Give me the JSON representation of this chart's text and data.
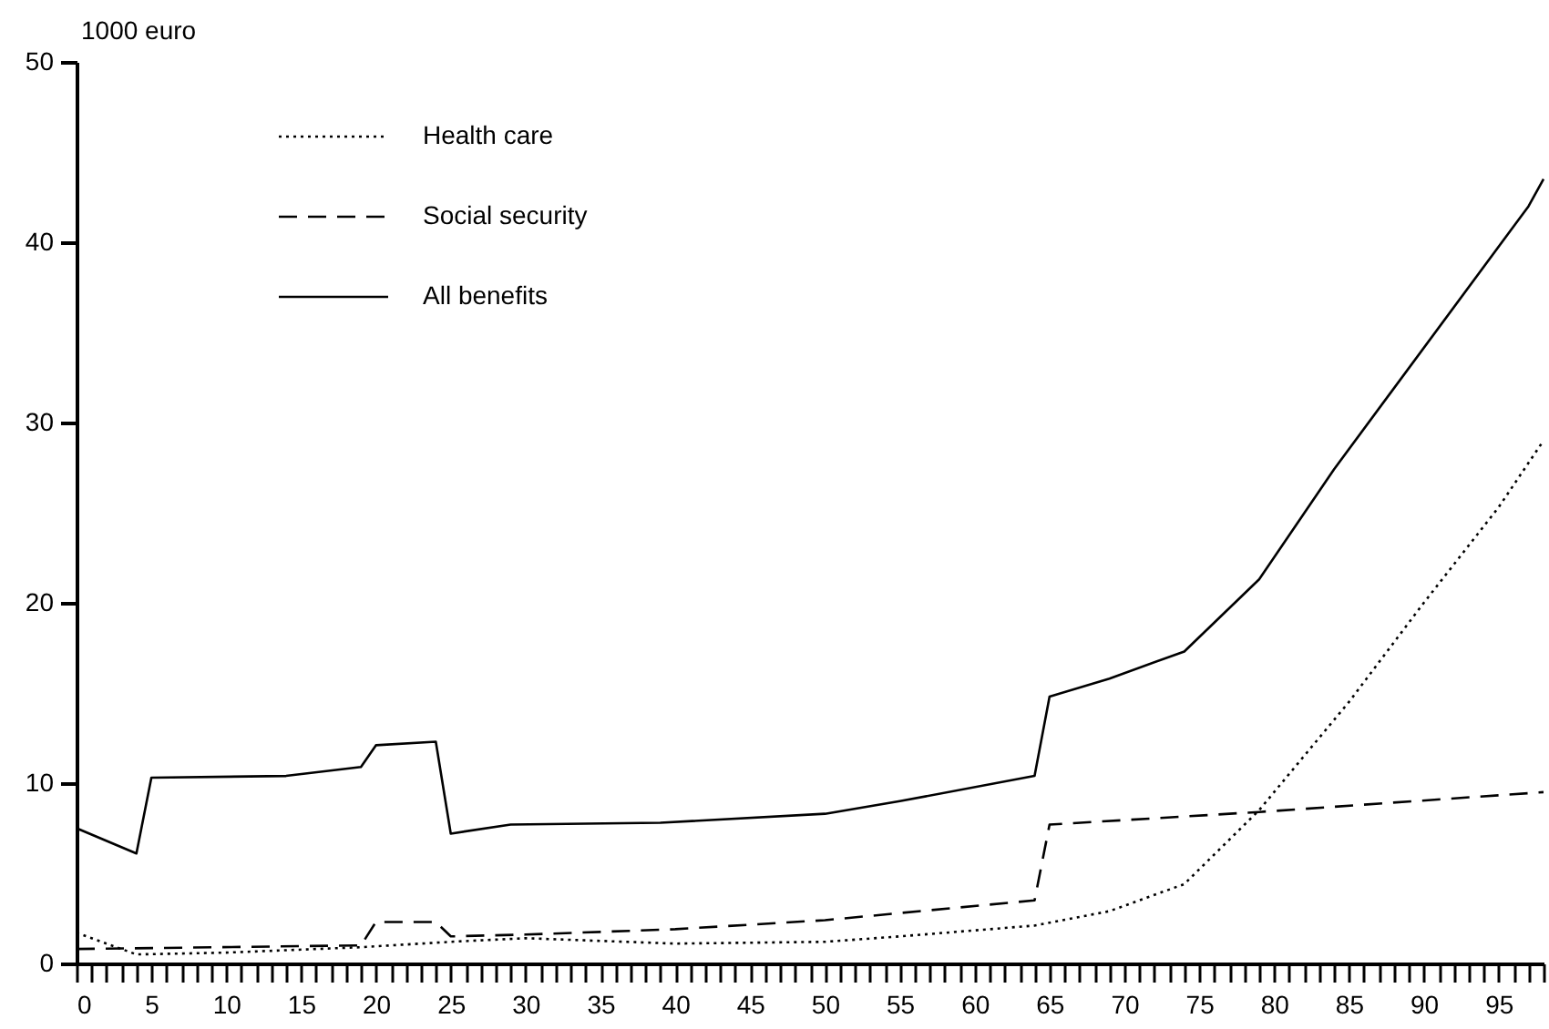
{
  "chart_data": {
    "type": "line",
    "ylabel": "1000 euro",
    "xlim": [
      0,
      98
    ],
    "ylim": [
      0,
      50
    ],
    "yticks": [
      0,
      10,
      20,
      30,
      40,
      50
    ],
    "xticks": [
      0,
      {
        "value": 1,
        "label": null
      },
      {
        "value": 2,
        "label": null
      },
      {
        "value": 3,
        "label": null
      },
      {
        "value": 4,
        "label": null
      },
      5,
      {
        "value": 6,
        "label": null
      },
      {
        "value": 7,
        "label": null
      },
      {
        "value": 8,
        "label": null
      },
      {
        "value": 9,
        "label": null
      },
      10,
      {
        "value": 11,
        "label": null
      },
      {
        "value": 12,
        "label": null
      },
      {
        "value": 13,
        "label": null
      },
      {
        "value": 14,
        "label": null
      },
      15,
      {
        "value": 16,
        "label": null
      },
      {
        "value": 17,
        "label": null
      },
      {
        "value": 18,
        "label": null
      },
      {
        "value": 19,
        "label": null
      },
      20,
      {
        "value": 21,
        "label": null
      },
      {
        "value": 22,
        "label": null
      },
      {
        "value": 23,
        "label": null
      },
      {
        "value": 24,
        "label": null
      },
      25,
      {
        "value": 26,
        "label": null
      },
      {
        "value": 27,
        "label": null
      },
      {
        "value": 28,
        "label": null
      },
      {
        "value": 29,
        "label": null
      },
      30,
      {
        "value": 31,
        "label": null
      },
      {
        "value": 32,
        "label": null
      },
      {
        "value": 33,
        "label": null
      },
      {
        "value": 34,
        "label": null
      },
      35,
      {
        "value": 36,
        "label": null
      },
      {
        "value": 37,
        "label": null
      },
      {
        "value": 38,
        "label": null
      },
      {
        "value": 39,
        "label": null
      },
      40,
      {
        "value": 41,
        "label": null
      },
      {
        "value": 42,
        "label": null
      },
      {
        "value": 43,
        "label": null
      },
      {
        "value": 44,
        "label": null
      },
      45,
      {
        "value": 46,
        "label": null
      },
      {
        "value": 47,
        "label": null
      },
      {
        "value": 48,
        "label": null
      },
      {
        "value": 49,
        "label": null
      },
      50,
      {
        "value": 51,
        "label": null
      },
      {
        "value": 52,
        "label": null
      },
      {
        "value": 53,
        "label": null
      },
      {
        "value": 54,
        "label": null
      },
      55,
      {
        "value": 56,
        "label": null
      },
      {
        "value": 57,
        "label": null
      },
      {
        "value": 58,
        "label": null
      },
      {
        "value": 59,
        "label": null
      },
      60,
      {
        "value": 61,
        "label": null
      },
      {
        "value": 62,
        "label": null
      },
      {
        "value": 63,
        "label": null
      },
      {
        "value": 64,
        "label": null
      },
      65,
      {
        "value": 66,
        "label": null
      },
      {
        "value": 67,
        "label": null
      },
      {
        "value": 68,
        "label": null
      },
      {
        "value": 69,
        "label": null
      },
      70,
      {
        "value": 71,
        "label": null
      },
      {
        "value": 72,
        "label": null
      },
      {
        "value": 73,
        "label": null
      },
      {
        "value": 74,
        "label": null
      },
      75,
      {
        "value": 76,
        "label": null
      },
      {
        "value": 77,
        "label": null
      },
      {
        "value": 78,
        "label": null
      },
      {
        "value": 79,
        "label": null
      },
      80,
      {
        "value": 81,
        "label": null
      },
      {
        "value": 82,
        "label": null
      },
      {
        "value": 83,
        "label": null
      },
      {
        "value": 84,
        "label": null
      },
      85,
      {
        "value": 86,
        "label": null
      },
      {
        "value": 87,
        "label": null
      },
      {
        "value": 88,
        "label": null
      },
      {
        "value": 89,
        "label": null
      },
      90,
      {
        "value": 91,
        "label": null
      },
      {
        "value": 92,
        "label": null
      },
      {
        "value": 93,
        "label": null
      },
      {
        "value": 94,
        "label": null
      },
      95,
      {
        "value": 96,
        "label": null
      },
      {
        "value": 97,
        "label": null
      },
      {
        "value": 98,
        "label": null
      }
    ],
    "grid": false,
    "legend": "top left",
    "marker": "none",
    "series": [
      {
        "name": "Health care",
        "color": "#000000",
        "line_style": "dotted",
        "x": [
          0,
          4,
          10,
          19,
          25,
          30,
          40,
          50,
          55,
          64,
          69,
          74,
          79,
          85,
          90,
          95,
          98
        ],
        "values": [
          1.7,
          0.5,
          0.6,
          0.9,
          1.2,
          1.4,
          1.1,
          1.2,
          1.5,
          2.1,
          2.9,
          4.4,
          8.5,
          14.5,
          20.0,
          25.3,
          29.0
        ]
      },
      {
        "name": "Social security",
        "color": "#000000",
        "line_style": "dashed",
        "x": [
          0,
          19,
          20,
          24,
          25,
          30,
          40,
          50,
          64,
          65,
          79,
          98
        ],
        "values": [
          0.8,
          1.0,
          2.3,
          2.3,
          1.5,
          1.6,
          1.9,
          2.4,
          3.5,
          7.7,
          8.4,
          9.5
        ]
      },
      {
        "name": "All benefits",
        "color": "#000000",
        "line_style": "solid",
        "x": [
          0,
          4,
          5,
          14,
          19,
          20,
          24,
          25,
          29,
          39,
          50,
          55,
          64,
          65,
          69,
          74,
          79,
          84,
          97,
          98
        ],
        "values": [
          7.5,
          6.1,
          10.3,
          10.4,
          10.9,
          12.1,
          12.3,
          7.2,
          7.7,
          7.8,
          8.3,
          9.0,
          10.4,
          14.8,
          15.8,
          17.3,
          21.3,
          27.4,
          42.0,
          43.5
        ]
      }
    ]
  }
}
